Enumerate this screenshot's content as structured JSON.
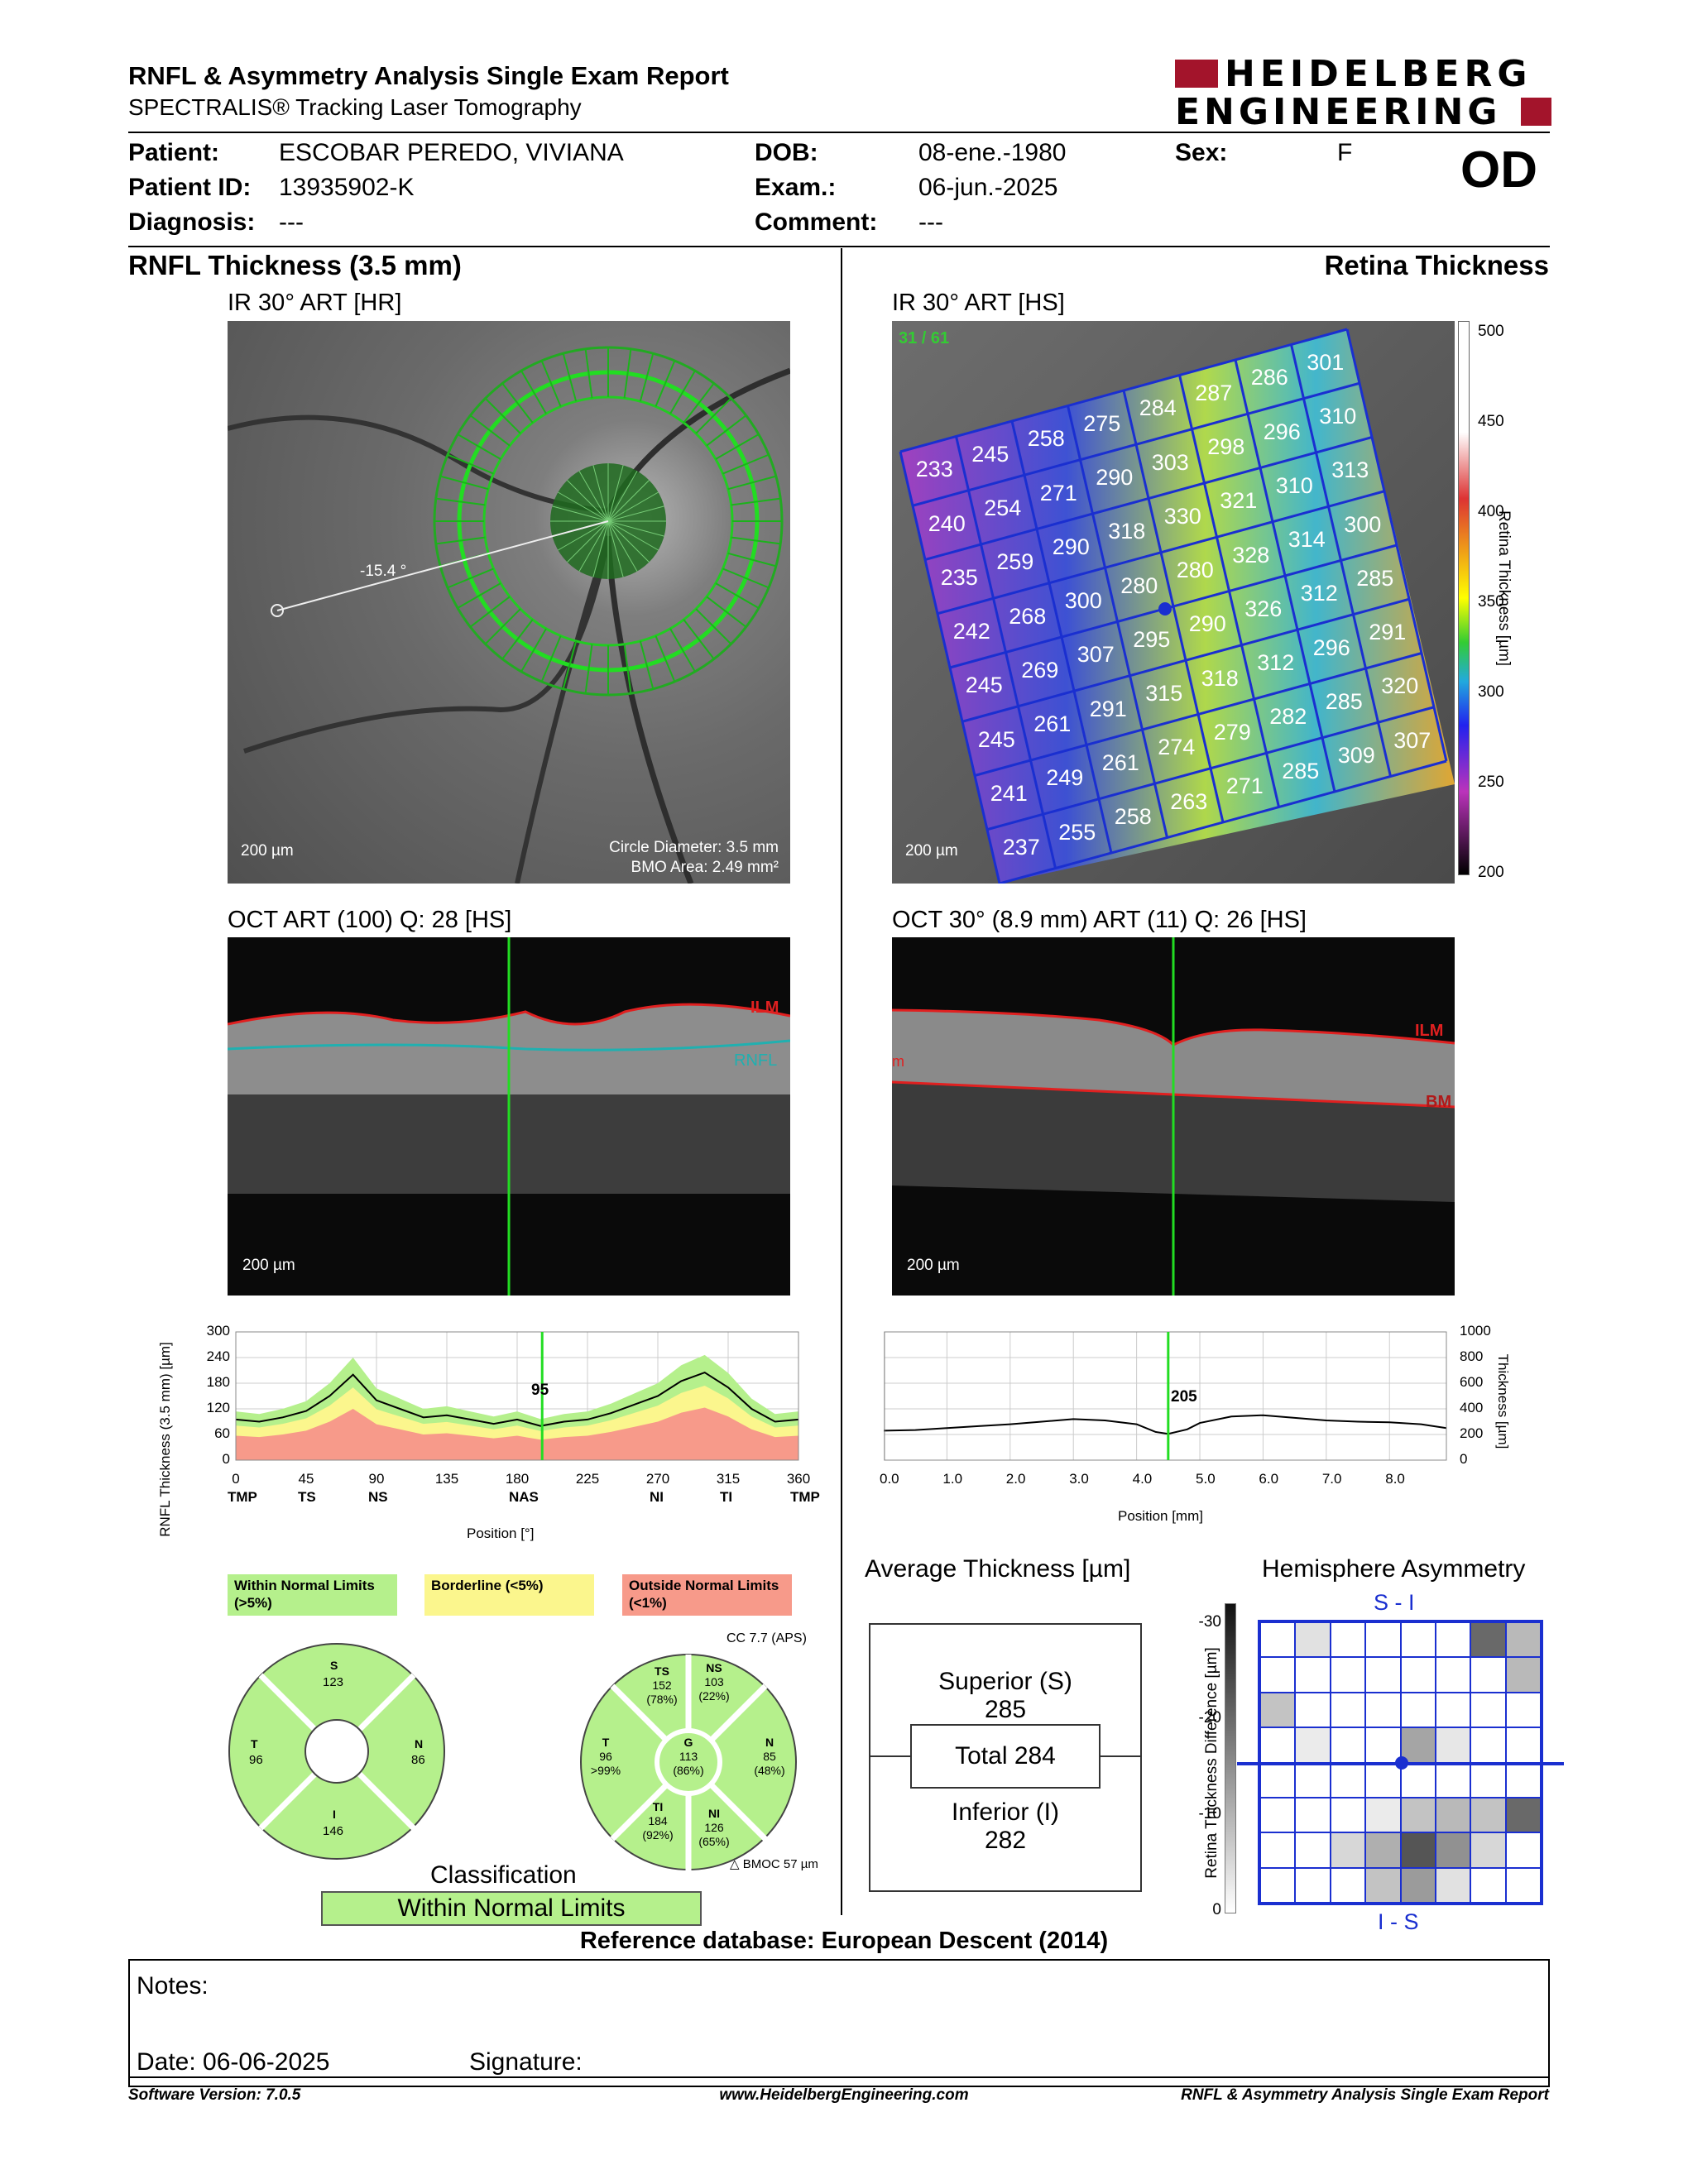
{
  "header": {
    "title": "RNFL & Asymmetry Analysis Single Exam Report",
    "subtitle": "SPECTRALIS® Tracking Laser Tomography",
    "logo_line1": "HEIDELBERG",
    "logo_line2": "ENGINEERING"
  },
  "patient": {
    "name_label": "Patient:",
    "name": "ESCOBAR PEREDO, VIVIANA",
    "id_label": "Patient ID:",
    "id": "13935902-K",
    "diagnosis_label": "Diagnosis:",
    "diagnosis": "---",
    "dob_label": "DOB:",
    "dob": "08-ene.-1980",
    "exam_label": "Exam.:",
    "exam": "06-jun.-2025",
    "comment_label": "Comment:",
    "comment": "---",
    "sex_label": "Sex:",
    "sex": "F",
    "eye": "OD"
  },
  "left": {
    "section_title": "RNFL Thickness (3.5 mm)",
    "ir_title": "IR 30° ART [HR]",
    "ir_angle": "-15.4 °",
    "ir_scale": "200 µm",
    "circle_diameter": "Circle Diameter: 3.5 mm",
    "bmo_area": "BMO Area: 2.49 mm²",
    "oct_title": "OCT ART (100) Q: 28 [HS]",
    "oct_scale": "200 µm",
    "oct_ilm": "ILM",
    "oct_rnfl": "RNFL"
  },
  "right": {
    "section_title": "Retina Thickness",
    "ir_title": "IR 30° ART [HS]",
    "ir_counter": "31 / 61",
    "ir_scale": "200 µm",
    "colorbar_title": "Retina Thickness [µm]",
    "colorbar_ticks": [
      "500",
      "450",
      "400",
      "350",
      "300",
      "250",
      "200"
    ],
    "grid_values": [
      [
        "233",
        "245",
        "258",
        "275",
        "284",
        "287",
        "286",
        "301"
      ],
      [
        "240",
        "254",
        "271",
        "290",
        "303",
        "298",
        "296",
        "310"
      ],
      [
        "235",
        "259",
        "290",
        "318",
        "330",
        "321",
        "310",
        "313"
      ],
      [
        "242",
        "268",
        "300",
        "280",
        "280",
        "328",
        "314",
        "300"
      ],
      [
        "245",
        "269",
        "307",
        "295",
        "290",
        "326",
        "312",
        "285"
      ],
      [
        "245",
        "261",
        "291",
        "315",
        "318",
        "312",
        "296",
        "291"
      ],
      [
        "241",
        "249",
        "261",
        "274",
        "279",
        "282",
        "285",
        "320"
      ],
      [
        "237",
        "255",
        "258",
        "263",
        "271",
        "285",
        "309",
        "307"
      ]
    ],
    "oct_title": "OCT 30° (8.9 mm) ART (11) Q: 26 [HS]",
    "oct_scale": "200 µm",
    "oct_ilm": "ILM",
    "oct_bm": "BM",
    "oct_m": "m"
  },
  "chart_data": [
    {
      "type": "line",
      "ylabel": "RNFL Thickness (3.5 mm) [µm]",
      "xlabel": "Position [°]",
      "ylim": [
        0,
        300
      ],
      "xlim": [
        0,
        360
      ],
      "yticks": [
        "300",
        "240",
        "180",
        "120",
        "60",
        "0"
      ],
      "xticks": [
        "0",
        "45",
        "90",
        "135",
        "180",
        "225",
        "270",
        "315",
        "360"
      ],
      "sector_labels": [
        "TMP",
        "TS",
        "NS",
        "NAS",
        "NI",
        "TI",
        "TMP"
      ],
      "cursor_label": "95",
      "x": [
        0,
        15,
        30,
        45,
        60,
        75,
        90,
        105,
        120,
        135,
        150,
        165,
        180,
        195,
        210,
        225,
        240,
        255,
        270,
        285,
        300,
        315,
        330,
        345,
        360
      ],
      "series": [
        {
          "values": [
            95,
            90,
            100,
            115,
            150,
            200,
            140,
            120,
            100,
            105,
            95,
            85,
            95,
            80,
            90,
            95,
            110,
            130,
            150,
            185,
            205,
            170,
            120,
            90,
            95
          ]
        }
      ]
    },
    {
      "type": "line",
      "ylabel": "Thickness [µm]",
      "xlabel": "Position [mm]",
      "ylim": [
        0,
        1000
      ],
      "xlim": [
        0,
        8.9
      ],
      "yticks": [
        "1000",
        "800",
        "600",
        "400",
        "200",
        "0"
      ],
      "xticks": [
        "0.0",
        "1.0",
        "2.0",
        "3.0",
        "4.0",
        "5.0",
        "6.0",
        "7.0",
        "8.0"
      ],
      "cursor_label": "205",
      "x": [
        0,
        0.5,
        1,
        1.5,
        2,
        2.5,
        3,
        3.5,
        4,
        4.3,
        4.5,
        4.8,
        5,
        5.5,
        6,
        6.5,
        7,
        7.5,
        8,
        8.5,
        8.9
      ],
      "series": [
        {
          "values": [
            230,
            235,
            250,
            265,
            280,
            300,
            320,
            310,
            280,
            220,
            205,
            240,
            290,
            340,
            350,
            330,
            310,
            300,
            295,
            280,
            250
          ]
        }
      ]
    }
  ],
  "legend": {
    "within": "Within Normal Limits (>5%)",
    "borderline": "Borderline (<5%)",
    "outside": "Outside Normal Limits (<1%)",
    "within_color": "#b5f08c",
    "borderline_color": "#fbf68d",
    "outside_color": "#f79a8a"
  },
  "sectors_simple": {
    "S": "123",
    "N": "86",
    "I": "146",
    "T": "96"
  },
  "sectors_detail": {
    "cc": "CC 7.7 (APS)",
    "TS": [
      "TS",
      "152",
      "(78%)"
    ],
    "NS": [
      "NS",
      "103",
      "(22%)"
    ],
    "T": [
      "T",
      "96",
      ">99%"
    ],
    "G": [
      "G",
      "113",
      "(86%)"
    ],
    "N": [
      "N",
      "85",
      "(48%)"
    ],
    "TI": [
      "TI",
      "184",
      "(92%)"
    ],
    "NI": [
      "NI",
      "126",
      "(65%)"
    ],
    "bmo": "BMOC 57 µm"
  },
  "classification": {
    "label": "Classification",
    "value": "Within Normal Limits"
  },
  "avg_thickness": {
    "title": "Average Thickness [µm]",
    "superior_label": "Superior (S)",
    "superior": "285",
    "total": "Total 284",
    "inferior_label": "Inferior (I)",
    "inferior": "282"
  },
  "asymmetry": {
    "title": "Hemisphere Asymmetry",
    "top_label": "S - I",
    "bottom_label": "I - S",
    "axis_label": "Retina Thickness Difference [µm]",
    "ticks": [
      "-30",
      "-20",
      "-10",
      "0"
    ],
    "cells": [
      [
        0,
        0.15,
        0,
        0,
        0,
        0,
        0.75,
        0.35
      ],
      [
        0,
        0,
        0,
        0,
        0,
        0,
        0,
        0.35
      ],
      [
        0.3,
        0,
        0,
        0,
        0,
        0,
        0,
        0
      ],
      [
        0,
        0.1,
        0,
        0,
        0.45,
        0.12,
        0,
        0
      ],
      [
        0,
        0,
        0,
        0,
        0,
        0,
        0,
        0
      ],
      [
        0,
        0,
        0,
        0.1,
        0.3,
        0.35,
        0.3,
        0.75
      ],
      [
        0,
        0,
        0.2,
        0.4,
        0.85,
        0.55,
        0.2,
        0
      ],
      [
        0,
        0,
        0,
        0.3,
        0.5,
        0.15,
        0,
        0
      ]
    ]
  },
  "reference_db": "Reference database: European Descent (2014)",
  "notes": {
    "label": "Notes:",
    "date": "Date: 06-06-2025",
    "signature": "Signature:"
  },
  "footer": {
    "version": "Software Version: 7.0.5",
    "url": "www.HeidelbergEngineering.com",
    "report": "RNFL & Asymmetry Analysis Single Exam Report"
  }
}
